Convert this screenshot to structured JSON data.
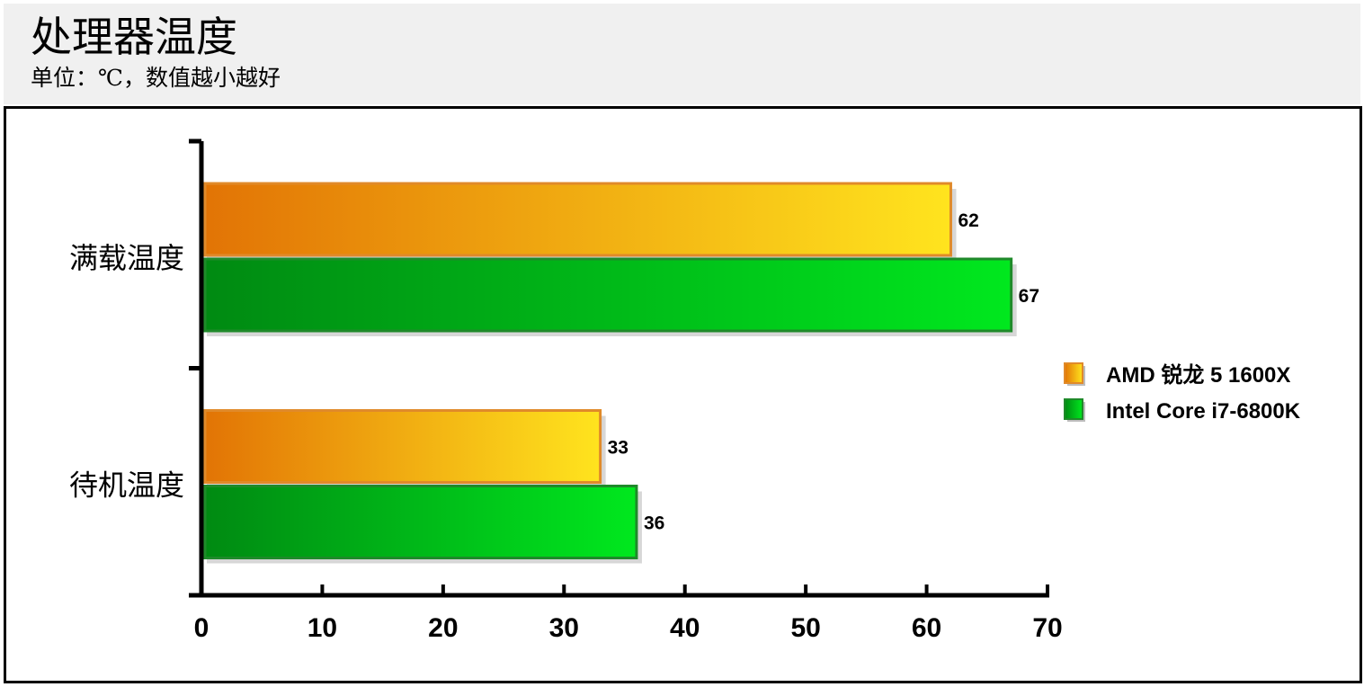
{
  "header": {
    "title": "处理器温度",
    "subtitle": "单位：℃，数值越小越好"
  },
  "colors": {
    "amd_dark": "#e27405",
    "amd_light": "#ffe41e",
    "amd_border": "#e08a2a",
    "intel_dark": "#008a12",
    "intel_light": "#00e81e",
    "intel_border": "#1f8a2a"
  },
  "chart_data": {
    "type": "bar",
    "orientation": "horizontal",
    "categories": [
      "满载温度",
      "待机温度"
    ],
    "series": [
      {
        "name": "AMD 锐龙 5 1600X",
        "values": [
          62,
          33
        ]
      },
      {
        "name": "Intel Core i7-6800K",
        "values": [
          67,
          36
        ]
      }
    ],
    "xlim": [
      0,
      70
    ],
    "xticks": [
      0,
      10,
      20,
      30,
      40,
      50,
      60,
      70
    ],
    "grid": false,
    "legend_position": "right"
  }
}
